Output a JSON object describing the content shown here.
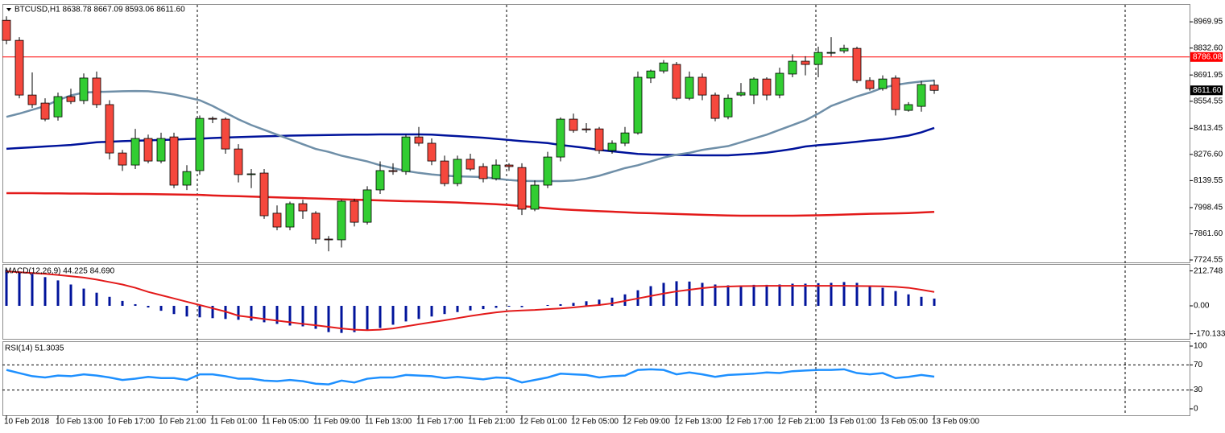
{
  "chart_data": {
    "type": "candlestick",
    "title": "BTCUSD,H1  8638.78 8667.09 8593.06 8611.60",
    "categories": [
      "10 Feb 2018",
      null,
      null,
      null,
      "10 Feb 13:00",
      null,
      null,
      null,
      "10 Feb 17:00",
      null,
      null,
      null,
      "10 Feb 21:00",
      null,
      null,
      null,
      "11 Feb 01:00",
      null,
      null,
      null,
      "11 Feb 05:00",
      null,
      null,
      null,
      "11 Feb 09:00",
      null,
      null,
      null,
      "11 Feb 13:00",
      null,
      null,
      null,
      "11 Feb 17:00",
      null,
      null,
      null,
      "11 Feb 21:00",
      null,
      null,
      null,
      "12 Feb 01:00",
      null,
      null,
      null,
      "12 Feb 05:00",
      null,
      null,
      null,
      "12 Feb 09:00",
      null,
      null,
      null,
      "12 Feb 13:00",
      null,
      null,
      null,
      "12 Feb 17:00",
      null,
      null,
      null,
      "12 Feb 21:00",
      null,
      null,
      null,
      "13 Feb 01:00",
      null,
      null,
      null,
      "13 Feb 05:00",
      null,
      null,
      null,
      "13 Feb 09:00"
    ],
    "ohlc": [
      [
        8978,
        8999,
        8852,
        8873
      ],
      [
        8873,
        8890,
        8570,
        8587
      ],
      [
        8587,
        8705,
        8520,
        8537
      ],
      [
        8545,
        8570,
        8450,
        8461
      ],
      [
        8473,
        8600,
        8453,
        8579
      ],
      [
        8579,
        8620,
        8540,
        8553
      ],
      [
        8558,
        8700,
        8540,
        8676
      ],
      [
        8676,
        8710,
        8520,
        8537
      ],
      [
        8537,
        8560,
        8250,
        8284
      ],
      [
        8284,
        8300,
        8190,
        8221
      ],
      [
        8221,
        8410,
        8200,
        8360
      ],
      [
        8360,
        8380,
        8230,
        8242
      ],
      [
        8242,
        8390,
        8230,
        8360
      ],
      [
        8368,
        8390,
        8100,
        8116
      ],
      [
        8116,
        8220,
        8090,
        8187
      ],
      [
        8192,
        8480,
        8170,
        8465
      ],
      [
        8465,
        8475,
        8440,
        8461
      ],
      [
        8461,
        8470,
        8280,
        8305
      ],
      [
        8305,
        8330,
        8130,
        8171
      ],
      [
        8171,
        8200,
        8100,
        8175
      ],
      [
        8179,
        8200,
        7940,
        7956
      ],
      [
        7969,
        8010,
        7880,
        7897
      ],
      [
        7897,
        8030,
        7880,
        8019
      ],
      [
        8019,
        8040,
        7940,
        7981
      ],
      [
        7969,
        7980,
        7810,
        7834
      ],
      [
        7834,
        7850,
        7770,
        7830
      ],
      [
        7830,
        8040,
        7790,
        8032
      ],
      [
        8032,
        8045,
        7900,
        7922
      ],
      [
        7922,
        8110,
        7910,
        8091
      ],
      [
        8091,
        8240,
        8070,
        8192
      ],
      [
        8192,
        8230,
        8170,
        8187
      ],
      [
        8187,
        8380,
        8170,
        8368
      ],
      [
        8368,
        8420,
        8320,
        8335
      ],
      [
        8335,
        8360,
        8220,
        8242
      ],
      [
        8242,
        8270,
        8110,
        8124
      ],
      [
        8124,
        8270,
        8110,
        8251
      ],
      [
        8251,
        8280,
        8190,
        8200
      ],
      [
        8213,
        8230,
        8130,
        8150
      ],
      [
        8150,
        8250,
        8140,
        8221
      ],
      [
        8221,
        8230,
        8190,
        8213
      ],
      [
        8208,
        8230,
        7960,
        7990
      ],
      [
        7990,
        8140,
        7980,
        8116
      ],
      [
        8116,
        8290,
        8100,
        8263
      ],
      [
        8263,
        8470,
        8240,
        8461
      ],
      [
        8461,
        8490,
        8390,
        8402
      ],
      [
        8410,
        8440,
        8390,
        8405
      ],
      [
        8410,
        8420,
        8280,
        8297
      ],
      [
        8297,
        8350,
        8280,
        8335
      ],
      [
        8335,
        8420,
        8320,
        8389
      ],
      [
        8389,
        8710,
        8380,
        8680
      ],
      [
        8676,
        8720,
        8650,
        8713
      ],
      [
        8713,
        8770,
        8700,
        8755
      ],
      [
        8747,
        8760,
        8560,
        8570
      ],
      [
        8570,
        8710,
        8560,
        8680
      ],
      [
        8680,
        8700,
        8560,
        8587
      ],
      [
        8587,
        8600,
        8450,
        8465
      ],
      [
        8473,
        8590,
        8460,
        8570
      ],
      [
        8587,
        8650,
        8580,
        8600
      ],
      [
        8587,
        8680,
        8540,
        8671
      ],
      [
        8671,
        8680,
        8560,
        8587
      ],
      [
        8587,
        8730,
        8570,
        8701
      ],
      [
        8697,
        8800,
        8680,
        8764
      ],
      [
        8764,
        8790,
        8690,
        8747
      ],
      [
        8747,
        8840,
        8680,
        8810
      ],
      [
        8806,
        8890,
        8790,
        8810
      ],
      [
        8818,
        8850,
        8805,
        8831
      ],
      [
        8831,
        8840,
        8650,
        8663
      ],
      [
        8663,
        8680,
        8610,
        8621
      ],
      [
        8621,
        8690,
        8610,
        8671
      ],
      [
        8676,
        8690,
        8480,
        8511
      ],
      [
        8507,
        8550,
        8500,
        8537
      ],
      [
        8528,
        8660,
        8500,
        8642
      ],
      [
        8638.78,
        8667.09,
        8593.06,
        8611.6
      ]
    ],
    "up_color": "#32cd32",
    "down_color": "#f5483d",
    "ylim": [
      7712,
      9063
    ],
    "yticks": [
      8969.95,
      {
        "value": 8832.6,
        "label": "8832.60"
      },
      8691.95,
      8554.55,
      8413.45,
      {
        "value": 8276.6,
        "label": "8276.60"
      },
      8139.55,
      7998.45,
      {
        "value": 7861.6,
        "label": "7861.60"
      },
      7724.55
    ],
    "level": 8786.08,
    "level_color": "#ff0000",
    "last_price": {
      "value": 8611.6,
      "label": "8611.60"
    },
    "series": [
      {
        "color": "#00139b",
        "width": 2.5,
        "values": [
          8306,
          8310,
          8314,
          8318,
          8322,
          8326,
          8333,
          8340,
          8343,
          8346,
          8348,
          8350,
          8352,
          8354,
          8357,
          8359,
          8362,
          8365,
          8367,
          8369,
          8371,
          8373,
          8375,
          8376,
          8377,
          8378,
          8379,
          8380,
          8380,
          8381,
          8381,
          8381,
          8381,
          8380,
          8376,
          8372,
          8368,
          8364,
          8358,
          8352,
          8346,
          8341,
          8336,
          8326,
          8318,
          8310,
          8300,
          8293,
          8286,
          8279,
          8276,
          8275,
          8274,
          8273,
          8272,
          8272,
          8272,
          8276,
          8280,
          8286,
          8295,
          8305,
          8318,
          8325,
          8330,
          8336,
          8343,
          8350,
          8356,
          8365,
          8375,
          8392,
          8415
        ]
      },
      {
        "color": "#e31a1a",
        "width": 2.5,
        "values": [
          8074,
          8074,
          8074,
          8073,
          8073,
          8072,
          8072,
          8071,
          8071,
          8070,
          8070,
          8069,
          8068,
          8067,
          8066,
          8065,
          8062,
          8060,
          8058,
          8056,
          8054,
          8052,
          8050,
          8048,
          8046,
          8044,
          8042,
          8040,
          8038,
          8036,
          8034,
          8032,
          8031,
          8029,
          8027,
          8025,
          8022,
          8019,
          8016,
          8012,
          8006,
          8001,
          7995,
          7990,
          7986,
          7983,
          7980,
          7977,
          7974,
          7971,
          7969,
          7967,
          7965,
          7963,
          7961,
          7959,
          7957,
          7956,
          7956,
          7956,
          7956,
          7956,
          7957,
          7958,
          7960,
          7962,
          7964,
          7966,
          7967,
          7968,
          7970,
          7973,
          7976
        ]
      },
      {
        "color": "#6f8fa8",
        "width": 2.5,
        "values": [
          8473,
          8490,
          8510,
          8530,
          8560,
          8585,
          8600,
          8603,
          8605,
          8607,
          8608,
          8607,
          8600,
          8590,
          8575,
          8560,
          8530,
          8495,
          8460,
          8430,
          8405,
          8380,
          8355,
          8330,
          8305,
          8290,
          8270,
          8255,
          8240,
          8220,
          8205,
          8190,
          8180,
          8172,
          8166,
          8162,
          8160,
          8158,
          8150,
          8143,
          8138,
          8137,
          8137,
          8137,
          8140,
          8150,
          8165,
          8185,
          8205,
          8220,
          8240,
          8260,
          8275,
          8285,
          8300,
          8310,
          8320,
          8340,
          8360,
          8380,
          8405,
          8430,
          8455,
          8490,
          8530,
          8555,
          8580,
          8600,
          8625,
          8640,
          8650,
          8658,
          8663
        ]
      }
    ],
    "macd": {
      "title": "MACD(12,26,9) 44.225 84.690",
      "ylim": [
        -201,
        255
      ],
      "yticks": [
        212.748,
        {
          "value": 0,
          "label": "0.00"
        },
        -170.133
      ],
      "bar_color": "#00139b",
      "line_color": "#e31a1a",
      "values": [
        220,
        210,
        195,
        175,
        155,
        130,
        105,
        80,
        55,
        30,
        10,
        -10,
        -30,
        -50,
        -65,
        -70,
        -75,
        -80,
        -85,
        -90,
        -100,
        -110,
        -120,
        -125,
        -140,
        -160,
        -165,
        -160,
        -150,
        -135,
        -115,
        -95,
        -80,
        -65,
        -50,
        -38,
        -28,
        -20,
        -12,
        -5,
        -8,
        0,
        5,
        10,
        18,
        28,
        38,
        50,
        70,
        95,
        120,
        140,
        150,
        148,
        140,
        130,
        125,
        125,
        128,
        128,
        130,
        135,
        135,
        138,
        140,
        145,
        140,
        125,
        110,
        90,
        70,
        55,
        44.225
      ],
      "signal": [
        210,
        205,
        200,
        195,
        188,
        180,
        172,
        160,
        145,
        130,
        110,
        85,
        65,
        45,
        25,
        5,
        -15,
        -35,
        -60,
        -70,
        -80,
        -90,
        -100,
        -110,
        -118,
        -128,
        -138,
        -145,
        -148,
        -145,
        -138,
        -125,
        -112,
        -100,
        -88,
        -75,
        -62,
        -50,
        -40,
        -32,
        -28,
        -25,
        -20,
        -16,
        -10,
        -2,
        5,
        15,
        30,
        45,
        60,
        75,
        88,
        98,
        108,
        115,
        118,
        120,
        121,
        122,
        122,
        122,
        122,
        122,
        122,
        122,
        121,
        120,
        119,
        116,
        110,
        98,
        84.69
      ]
    },
    "rsi": {
      "title": "RSI(14) 51.3035",
      "ylim": [
        -10.3,
        107.7
      ],
      "yticks": [
        100,
        70,
        30,
        0
      ],
      "levels": [
        70,
        30
      ],
      "color": "#1e90ff",
      "values": [
        62,
        57,
        52,
        50,
        53,
        52,
        55,
        53,
        50,
        46,
        48,
        51,
        49,
        49,
        46,
        55,
        55,
        52,
        48,
        48,
        45,
        44,
        46,
        44,
        40,
        39,
        45,
        42,
        48,
        50,
        50,
        54,
        53,
        52,
        49,
        51,
        49,
        47,
        50,
        49,
        42,
        46,
        50,
        56,
        55,
        54,
        50,
        52,
        53,
        62,
        63,
        62,
        55,
        58,
        55,
        51,
        54,
        55,
        56,
        58,
        57,
        60,
        61,
        62,
        62,
        63,
        57,
        55,
        57,
        49,
        51,
        54,
        51.3035
      ]
    }
  }
}
